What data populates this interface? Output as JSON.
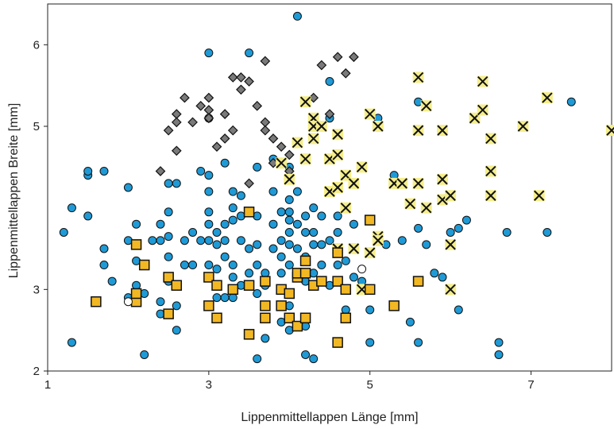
{
  "chart_data": {
    "type": "scatter",
    "xlabel": "Lippenmittellappen Länge [mm]",
    "ylabel": "Lippenmittellappen Breite [mm]",
    "xlim": [
      1,
      8
    ],
    "ylim": [
      2,
      6.5
    ],
    "x_ticks": [
      1,
      3,
      5,
      7
    ],
    "y_ticks": [
      2,
      3,
      5,
      6
    ],
    "y_tick_labels": [
      "2",
      "3",
      "5",
      "6"
    ],
    "grid": false,
    "series": [
      {
        "marker": "circle",
        "color": "#1f9ad6",
        "points": [
          [
            1.2,
            3.7
          ],
          [
            1.3,
            2.35
          ],
          [
            1.3,
            4.0
          ],
          [
            1.5,
            4.4
          ],
          [
            1.5,
            4.45
          ],
          [
            1.5,
            3.9
          ],
          [
            1.7,
            4.45
          ],
          [
            1.7,
            3.5
          ],
          [
            1.7,
            3.3
          ],
          [
            1.8,
            3.1
          ],
          [
            2.0,
            4.25
          ],
          [
            2.0,
            3.6
          ],
          [
            2.1,
            3.8
          ],
          [
            2.1,
            3.05
          ],
          [
            2.1,
            2.95
          ],
          [
            2.1,
            3.35
          ],
          [
            2.2,
            2.95
          ],
          [
            2.2,
            2.2
          ],
          [
            2.3,
            3.6
          ],
          [
            2.4,
            2.7
          ],
          [
            2.4,
            2.85
          ],
          [
            2.4,
            3.6
          ],
          [
            2.4,
            3.8
          ],
          [
            2.5,
            4.3
          ],
          [
            2.5,
            3.95
          ],
          [
            2.5,
            3.65
          ],
          [
            2.5,
            3.4
          ],
          [
            2.5,
            3.1
          ],
          [
            2.6,
            2.8
          ],
          [
            2.6,
            2.5
          ],
          [
            2.6,
            4.3
          ],
          [
            2.7,
            3.3
          ],
          [
            2.7,
            3.6
          ],
          [
            2.8,
            3.7
          ],
          [
            2.8,
            3.3
          ],
          [
            2.9,
            3.6
          ],
          [
            2.9,
            4.45
          ],
          [
            3.0,
            4.2
          ],
          [
            3.0,
            4.4
          ],
          [
            3.0,
            3.95
          ],
          [
            3.0,
            3.8
          ],
          [
            3.0,
            3.6
          ],
          [
            3.0,
            3.3
          ],
          [
            3.0,
            5.9
          ],
          [
            3.0,
            5.1
          ],
          [
            3.1,
            3.7
          ],
          [
            3.1,
            3.55
          ],
          [
            3.1,
            3.25
          ],
          [
            3.1,
            3.05
          ],
          [
            3.1,
            2.9
          ],
          [
            3.2,
            4.55
          ],
          [
            3.2,
            3.8
          ],
          [
            3.2,
            3.6
          ],
          [
            3.2,
            3.4
          ],
          [
            3.2,
            2.9
          ],
          [
            3.3,
            4.2
          ],
          [
            3.3,
            4.0
          ],
          [
            3.3,
            3.85
          ],
          [
            3.3,
            3.3
          ],
          [
            3.3,
            3.15
          ],
          [
            3.3,
            2.9
          ],
          [
            3.4,
            4.15
          ],
          [
            3.4,
            3.9
          ],
          [
            3.4,
            3.6
          ],
          [
            3.4,
            3.05
          ],
          [
            3.5,
            3.5
          ],
          [
            3.5,
            3.2
          ],
          [
            3.5,
            5.9
          ],
          [
            3.6,
            4.5
          ],
          [
            3.6,
            3.9
          ],
          [
            3.6,
            3.55
          ],
          [
            3.6,
            3.3
          ],
          [
            3.6,
            2.95
          ],
          [
            3.6,
            2.15
          ],
          [
            3.7,
            3.2
          ],
          [
            3.7,
            3.05
          ],
          [
            3.7,
            2.4
          ],
          [
            3.8,
            4.6
          ],
          [
            3.8,
            4.2
          ],
          [
            3.8,
            3.8
          ],
          [
            3.8,
            3.5
          ],
          [
            3.9,
            3.95
          ],
          [
            3.9,
            3.6
          ],
          [
            3.9,
            3.4
          ],
          [
            3.9,
            3.2
          ],
          [
            3.9,
            2.6
          ],
          [
            4.0,
            4.5
          ],
          [
            4.0,
            4.1
          ],
          [
            4.0,
            3.95
          ],
          [
            4.0,
            3.7
          ],
          [
            4.0,
            3.55
          ],
          [
            4.0,
            3.3
          ],
          [
            4.0,
            2.8
          ],
          [
            4.0,
            2.5
          ],
          [
            4.1,
            6.35
          ],
          [
            4.1,
            4.2
          ],
          [
            4.1,
            3.8
          ],
          [
            4.1,
            3.5
          ],
          [
            4.1,
            3.15
          ],
          [
            4.2,
            3.9
          ],
          [
            4.2,
            3.7
          ],
          [
            4.2,
            3.4
          ],
          [
            4.2,
            3.1
          ],
          [
            4.2,
            2.55
          ],
          [
            4.2,
            2.2
          ],
          [
            4.3,
            4.0
          ],
          [
            4.3,
            3.7
          ],
          [
            4.3,
            3.55
          ],
          [
            4.3,
            3.2
          ],
          [
            4.3,
            2.15
          ],
          [
            4.4,
            3.9
          ],
          [
            4.4,
            3.55
          ],
          [
            4.4,
            3.3
          ],
          [
            4.5,
            3.6
          ],
          [
            4.5,
            3.05
          ],
          [
            4.5,
            5.55
          ],
          [
            4.5,
            5.1
          ],
          [
            4.6,
            3.9
          ],
          [
            4.6,
            3.7
          ],
          [
            4.6,
            3.3
          ],
          [
            4.7,
            3.35
          ],
          [
            4.7,
            3.0
          ],
          [
            4.7,
            2.75
          ],
          [
            4.8,
            3.15
          ],
          [
            4.9,
            3.1
          ],
          [
            5.0,
            2.75
          ],
          [
            5.0,
            2.35
          ],
          [
            5.1,
            5.1
          ],
          [
            5.2,
            3.55
          ],
          [
            5.3,
            4.4
          ],
          [
            5.4,
            3.6
          ],
          [
            5.5,
            2.6
          ],
          [
            5.6,
            2.35
          ],
          [
            5.6,
            5.3
          ],
          [
            5.6,
            3.75
          ],
          [
            5.7,
            3.55
          ],
          [
            5.8,
            3.2
          ],
          [
            5.9,
            3.15
          ],
          [
            6.0,
            3.7
          ],
          [
            6.1,
            3.75
          ],
          [
            6.1,
            2.75
          ],
          [
            6.2,
            3.85
          ],
          [
            6.6,
            2.35
          ],
          [
            6.6,
            2.2
          ],
          [
            6.7,
            3.7
          ],
          [
            7.2,
            3.7
          ],
          [
            7.5,
            5.3
          ],
          [
            2.0,
            2.9
          ],
          [
            4.8,
            3.8
          ],
          [
            4.0,
            3.85
          ]
        ]
      },
      {
        "marker": "diamond",
        "color": "#7a7a7a",
        "points": [
          [
            2.4,
            4.45
          ],
          [
            2.5,
            4.95
          ],
          [
            2.6,
            5.15
          ],
          [
            2.6,
            5.05
          ],
          [
            2.6,
            4.7
          ],
          [
            2.7,
            5.35
          ],
          [
            2.8,
            5.05
          ],
          [
            2.9,
            5.25
          ],
          [
            3.0,
            5.35
          ],
          [
            3.0,
            5.2
          ],
          [
            3.0,
            5.1
          ],
          [
            3.1,
            4.75
          ],
          [
            3.2,
            5.15
          ],
          [
            3.2,
            4.85
          ],
          [
            3.3,
            4.95
          ],
          [
            3.3,
            5.6
          ],
          [
            3.4,
            5.6
          ],
          [
            3.4,
            5.45
          ],
          [
            3.5,
            5.55
          ],
          [
            3.6,
            5.25
          ],
          [
            3.7,
            5.8
          ],
          [
            3.7,
            5.05
          ],
          [
            3.8,
            4.85
          ],
          [
            3.8,
            4.55
          ],
          [
            3.9,
            4.75
          ],
          [
            4.0,
            4.45
          ],
          [
            4.0,
            4.65
          ],
          [
            4.3,
            5.35
          ],
          [
            4.4,
            5.75
          ],
          [
            4.5,
            5.15
          ],
          [
            4.6,
            5.85
          ],
          [
            4.7,
            5.65
          ],
          [
            4.8,
            5.85
          ],
          [
            4.3,
            5.05
          ],
          [
            3.7,
            4.95
          ],
          [
            3.5,
            4.3
          ]
        ]
      },
      {
        "marker": "x",
        "color": "#f5ee8a",
        "points": [
          [
            3.9,
            4.55
          ],
          [
            4.0,
            4.35
          ],
          [
            4.1,
            4.8
          ],
          [
            4.2,
            4.6
          ],
          [
            4.2,
            5.3
          ],
          [
            4.3,
            5.1
          ],
          [
            4.3,
            5.0
          ],
          [
            4.3,
            4.85
          ],
          [
            4.4,
            5.0
          ],
          [
            4.5,
            4.2
          ],
          [
            4.5,
            4.6
          ],
          [
            4.6,
            4.9
          ],
          [
            4.6,
            4.65
          ],
          [
            4.6,
            4.25
          ],
          [
            4.6,
            3.5
          ],
          [
            4.7,
            4.0
          ],
          [
            4.7,
            4.4
          ],
          [
            4.8,
            4.3
          ],
          [
            4.8,
            3.5
          ],
          [
            4.9,
            4.5
          ],
          [
            4.9,
            3.0
          ],
          [
            5.0,
            5.15
          ],
          [
            5.0,
            3.45
          ],
          [
            5.1,
            5.0
          ],
          [
            5.1,
            3.65
          ],
          [
            5.1,
            3.6
          ],
          [
            5.3,
            4.3
          ],
          [
            5.4,
            4.3
          ],
          [
            5.5,
            4.05
          ],
          [
            5.6,
            5.6
          ],
          [
            5.6,
            4.95
          ],
          [
            5.6,
            4.3
          ],
          [
            5.7,
            5.25
          ],
          [
            5.7,
            4.0
          ],
          [
            5.9,
            4.95
          ],
          [
            5.9,
            4.35
          ],
          [
            5.9,
            4.1
          ],
          [
            6.0,
            4.15
          ],
          [
            6.0,
            3.55
          ],
          [
            6.0,
            3.0
          ],
          [
            6.3,
            5.1
          ],
          [
            6.4,
            5.55
          ],
          [
            6.4,
            5.2
          ],
          [
            6.5,
            4.85
          ],
          [
            6.5,
            4.45
          ],
          [
            6.5,
            4.15
          ],
          [
            6.9,
            5.0
          ],
          [
            7.1,
            4.15
          ],
          [
            7.2,
            5.35
          ],
          [
            8.0,
            4.95
          ]
        ]
      },
      {
        "marker": "square",
        "color": "#f2b824",
        "points": [
          [
            1.6,
            2.85
          ],
          [
            2.1,
            3.55
          ],
          [
            2.1,
            2.85
          ],
          [
            2.1,
            2.95
          ],
          [
            2.2,
            3.3
          ],
          [
            2.5,
            2.7
          ],
          [
            2.5,
            3.15
          ],
          [
            2.6,
            3.05
          ],
          [
            3.0,
            3.15
          ],
          [
            3.0,
            2.8
          ],
          [
            3.1,
            3.05
          ],
          [
            3.1,
            2.65
          ],
          [
            3.3,
            3.0
          ],
          [
            3.5,
            3.05
          ],
          [
            3.5,
            2.45
          ],
          [
            3.5,
            3.95
          ],
          [
            3.7,
            3.1
          ],
          [
            3.7,
            2.8
          ],
          [
            3.7,
            2.65
          ],
          [
            3.9,
            3.0
          ],
          [
            3.9,
            2.8
          ],
          [
            4.0,
            2.95
          ],
          [
            4.0,
            2.65
          ],
          [
            4.1,
            3.15
          ],
          [
            4.1,
            3.2
          ],
          [
            4.1,
            2.55
          ],
          [
            4.2,
            3.2
          ],
          [
            4.2,
            3.35
          ],
          [
            4.3,
            3.05
          ],
          [
            4.4,
            3.1
          ],
          [
            4.6,
            2.35
          ],
          [
            4.6,
            3.1
          ],
          [
            4.7,
            3.0
          ],
          [
            4.7,
            2.65
          ],
          [
            5.0,
            3.85
          ],
          [
            5.0,
            3.0
          ],
          [
            5.3,
            2.8
          ],
          [
            5.6,
            3.1
          ],
          [
            4.6,
            3.45
          ],
          [
            4.2,
            2.65
          ]
        ]
      },
      {
        "marker": "circle-open",
        "color": "#ffffff",
        "points": [
          [
            2.0,
            2.85
          ],
          [
            4.9,
            3.25
          ]
        ]
      }
    ]
  }
}
